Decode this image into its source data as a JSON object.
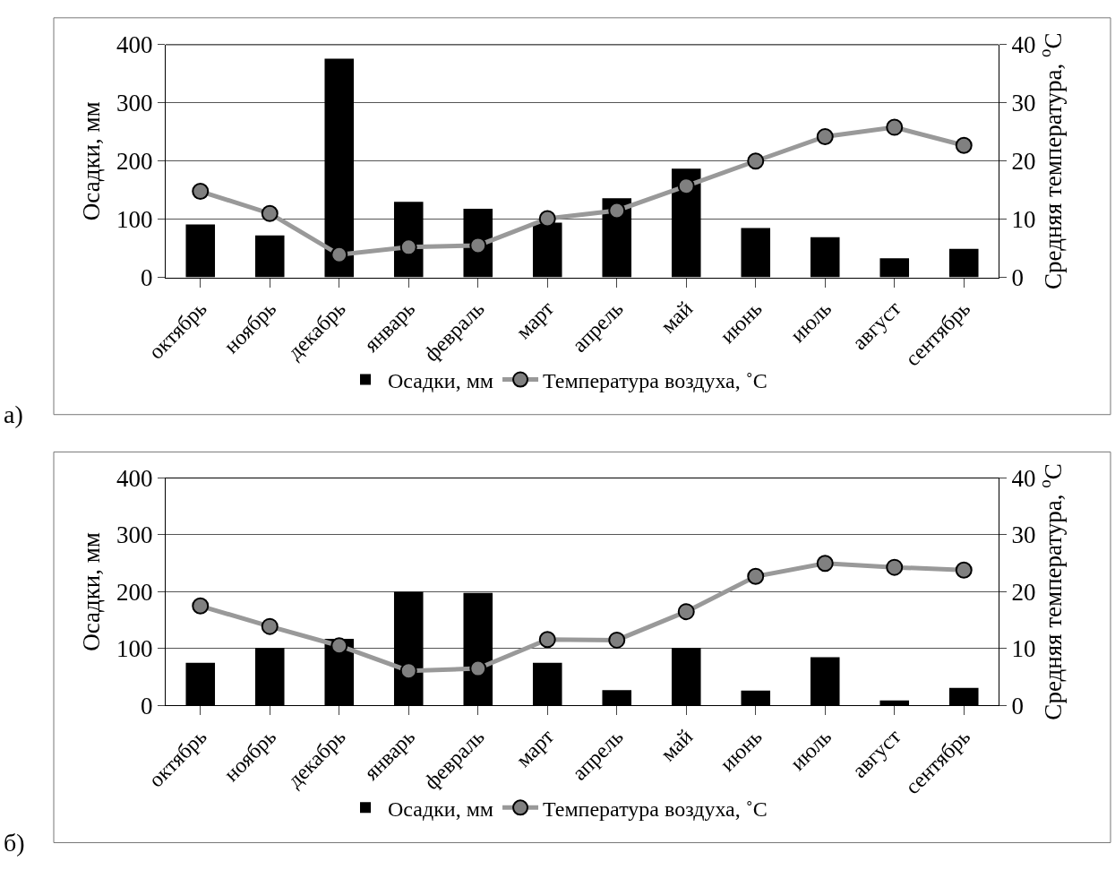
{
  "chart_data": [
    {
      "type": "bar",
      "annotations": [
        "а)"
      ],
      "ylabel": "Осадки, мм",
      "y2label": "Средняя температура, $^{o}$C",
      "categories": [
        "октябрь",
        "ноябрь",
        "декабрь",
        "январь",
        "февраль",
        "март",
        "апрель",
        "май",
        "июнь",
        "июль",
        "август",
        "сентябрь"
      ],
      "series": [
        {
          "name": "Осадки, мм",
          "color": "#000000",
          "values": [
            91,
            72,
            376,
            130,
            118,
            94,
            136,
            187,
            85,
            69,
            33,
            49
          ]
        },
        {
          "name": "Температура воздуха, ˚C",
          "type": "line",
          "axis": "y2",
          "color": "#999999",
          "values": [
            14.8,
            11.0,
            3.9,
            5.2,
            5.5,
            10.1,
            11.5,
            15.7,
            20.0,
            24.2,
            25.8,
            22.7
          ]
        }
      ],
      "ylim": [
        0,
        400
      ],
      "yticks": [
        0,
        100,
        200,
        300,
        400
      ],
      "y2lim": [
        0,
        40
      ],
      "y2ticks": [
        0,
        10,
        20,
        30,
        40
      ],
      "grid": "y",
      "legend": "bottom",
      "marker": "circle"
    },
    {
      "type": "bar",
      "annotations": [
        "б)"
      ],
      "ylabel": "Осадки, мм",
      "y2label": "Средняя температура, $^{o}$C",
      "categories": [
        "октябрь",
        "ноябрь",
        "декабрь",
        "январь",
        "февраль",
        "март",
        "апрель",
        "май",
        "июнь",
        "июль",
        "август",
        "сентябрь"
      ],
      "series": [
        {
          "name": "Осадки, мм",
          "color": "#000000",
          "values": [
            75,
            101,
            117,
            200,
            198,
            75,
            27,
            101,
            26,
            85,
            9,
            31
          ]
        },
        {
          "name": "Температура воздуха, ˚C",
          "type": "line",
          "axis": "y2",
          "color": "#999999",
          "values": [
            17.5,
            13.9,
            10.5,
            6.1,
            6.5,
            11.6,
            11.5,
            16.5,
            22.7,
            25.0,
            24.3,
            23.8
          ]
        }
      ],
      "ylim": [
        0,
        400
      ],
      "yticks": [
        0,
        100,
        200,
        300,
        400
      ],
      "y2lim": [
        0,
        40
      ],
      "y2ticks": [
        0,
        10,
        20,
        30,
        40
      ],
      "grid": "y",
      "legend": "bottom",
      "marker": "circle"
    }
  ]
}
